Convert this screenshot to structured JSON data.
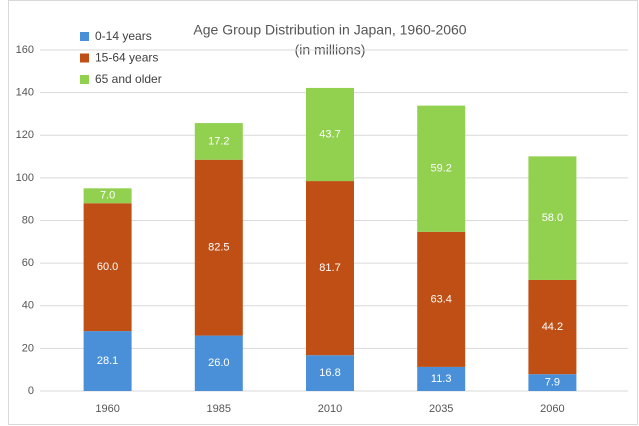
{
  "chart_data": {
    "type": "stacked_bar",
    "title": "Age Group Distribution in Japan, 1960-2060",
    "subtitle": "(in millions)",
    "categories": [
      "1960",
      "1985",
      "2010",
      "2035",
      "2060"
    ],
    "series": [
      {
        "name": "0-14 years",
        "color": "#4a90d9",
        "values": [
          28.1,
          26.0,
          16.8,
          11.3,
          7.9
        ],
        "value_labels": [
          "28.1",
          "26.0",
          "16.8",
          "11.3",
          "7.9"
        ]
      },
      {
        "name": "15-64 years",
        "color": "#c04f16",
        "values": [
          60.0,
          82.5,
          81.7,
          63.4,
          44.2
        ],
        "value_labels": [
          "60.0",
          "82.5",
          "81.7",
          "63.4",
          "44.2"
        ]
      },
      {
        "name": "65 and older",
        "color": "#92d050",
        "values": [
          7.0,
          17.2,
          43.7,
          59.2,
          58.0
        ],
        "value_labels": [
          "7.0",
          "17.2",
          "43.7",
          "59.2",
          "58.0"
        ]
      }
    ],
    "ylim": [
      0,
      160
    ],
    "yticks": [
      0,
      20,
      40,
      60,
      80,
      100,
      120,
      140,
      160
    ],
    "grid": true,
    "legend": "top-left"
  }
}
